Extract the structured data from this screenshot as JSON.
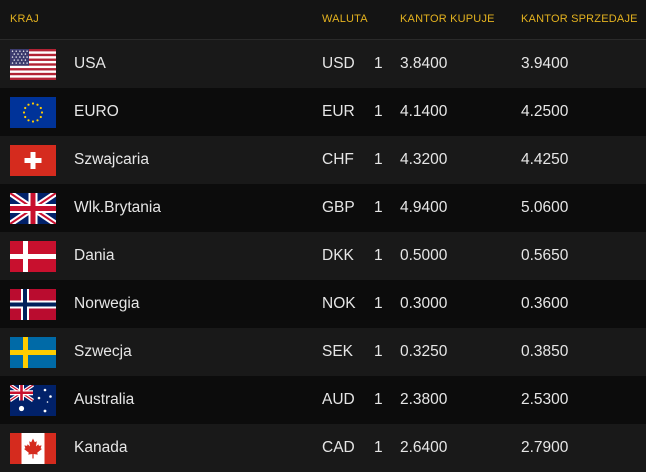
{
  "header": {
    "country": "KRAJ",
    "currency": "WALUTA",
    "buy": "KANTOR KUPUJE",
    "sell": "KANTOR SPRZEDAJE"
  },
  "rows": [
    {
      "country": "USA",
      "code": "USD",
      "unit": "1",
      "buy": "3.8400",
      "sell": "3.9400",
      "flag_icon": "usa-flag-icon"
    },
    {
      "country": "EURO",
      "code": "EUR",
      "unit": "1",
      "buy": "4.1400",
      "sell": "4.2500",
      "flag_icon": "eu-flag-icon"
    },
    {
      "country": "Szwajcaria",
      "code": "CHF",
      "unit": "1",
      "buy": "4.3200",
      "sell": "4.4250",
      "flag_icon": "switzerland-flag-icon"
    },
    {
      "country": "Wlk.Brytania",
      "code": "GBP",
      "unit": "1",
      "buy": "4.9400",
      "sell": "5.0600",
      "flag_icon": "uk-flag-icon"
    },
    {
      "country": "Dania",
      "code": "DKK",
      "unit": "1",
      "buy": "0.5000",
      "sell": "0.5650",
      "flag_icon": "denmark-flag-icon"
    },
    {
      "country": "Norwegia",
      "code": "NOK",
      "unit": "1",
      "buy": "0.3000",
      "sell": "0.3600",
      "flag_icon": "norway-flag-icon"
    },
    {
      "country": "Szwecja",
      "code": "SEK",
      "unit": "1",
      "buy": "0.3250",
      "sell": "0.3850",
      "flag_icon": "sweden-flag-icon"
    },
    {
      "country": "Australia",
      "code": "AUD",
      "unit": "1",
      "buy": "2.3800",
      "sell": "2.5300",
      "flag_icon": "australia-flag-icon"
    },
    {
      "country": "Kanada",
      "code": "CAD",
      "unit": "1",
      "buy": "2.6400",
      "sell": "2.7900",
      "flag_icon": "canada-flag-icon"
    }
  ],
  "colors": {
    "header_text": "#e4b21f",
    "row_odd": "#191919",
    "row_even": "#0c0c0c"
  }
}
